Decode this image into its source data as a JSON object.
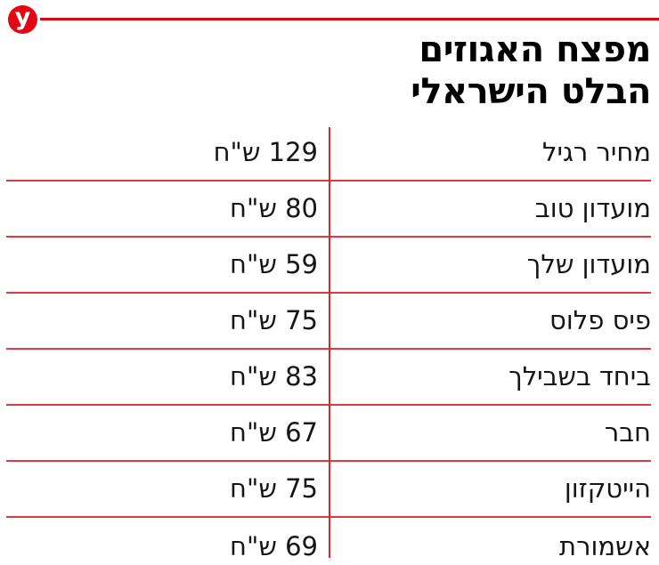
{
  "brand": {
    "logo_letter": "y"
  },
  "header": {
    "title_line1": "מפצח האגוזים",
    "title_line2": "הבלט הישראלי"
  },
  "colors": {
    "brand_red": "#e30613",
    "line_red": "#e23a40",
    "divider_red": "#e4242b",
    "text_color": "#161616"
  },
  "chart_data": {
    "type": "table",
    "title": "מפצח האגוזים הבלט הישראלי",
    "unit": "ש\"ח",
    "rows": [
      {
        "label": "מחיר רגיל",
        "value": 129,
        "display": "129 ש\"ח"
      },
      {
        "label": "מועדון טוב",
        "value": 80,
        "display": "80 ש\"ח"
      },
      {
        "label": "מועדון שלך",
        "value": 59,
        "display": "59 ש\"ח"
      },
      {
        "label": "פיס פלוס",
        "value": 75,
        "display": "75 ש\"ח"
      },
      {
        "label": "ביחד בשבילך",
        "value": 83,
        "display": "83 ש\"ח"
      },
      {
        "label": "חבר",
        "value": 67,
        "display": "67 ש\"ח"
      },
      {
        "label": "הייטקזון",
        "value": 75,
        "display": "75 ש\"ח"
      },
      {
        "label": "אשמורת",
        "value": 69,
        "display": "69 ש\"ח"
      }
    ]
  }
}
